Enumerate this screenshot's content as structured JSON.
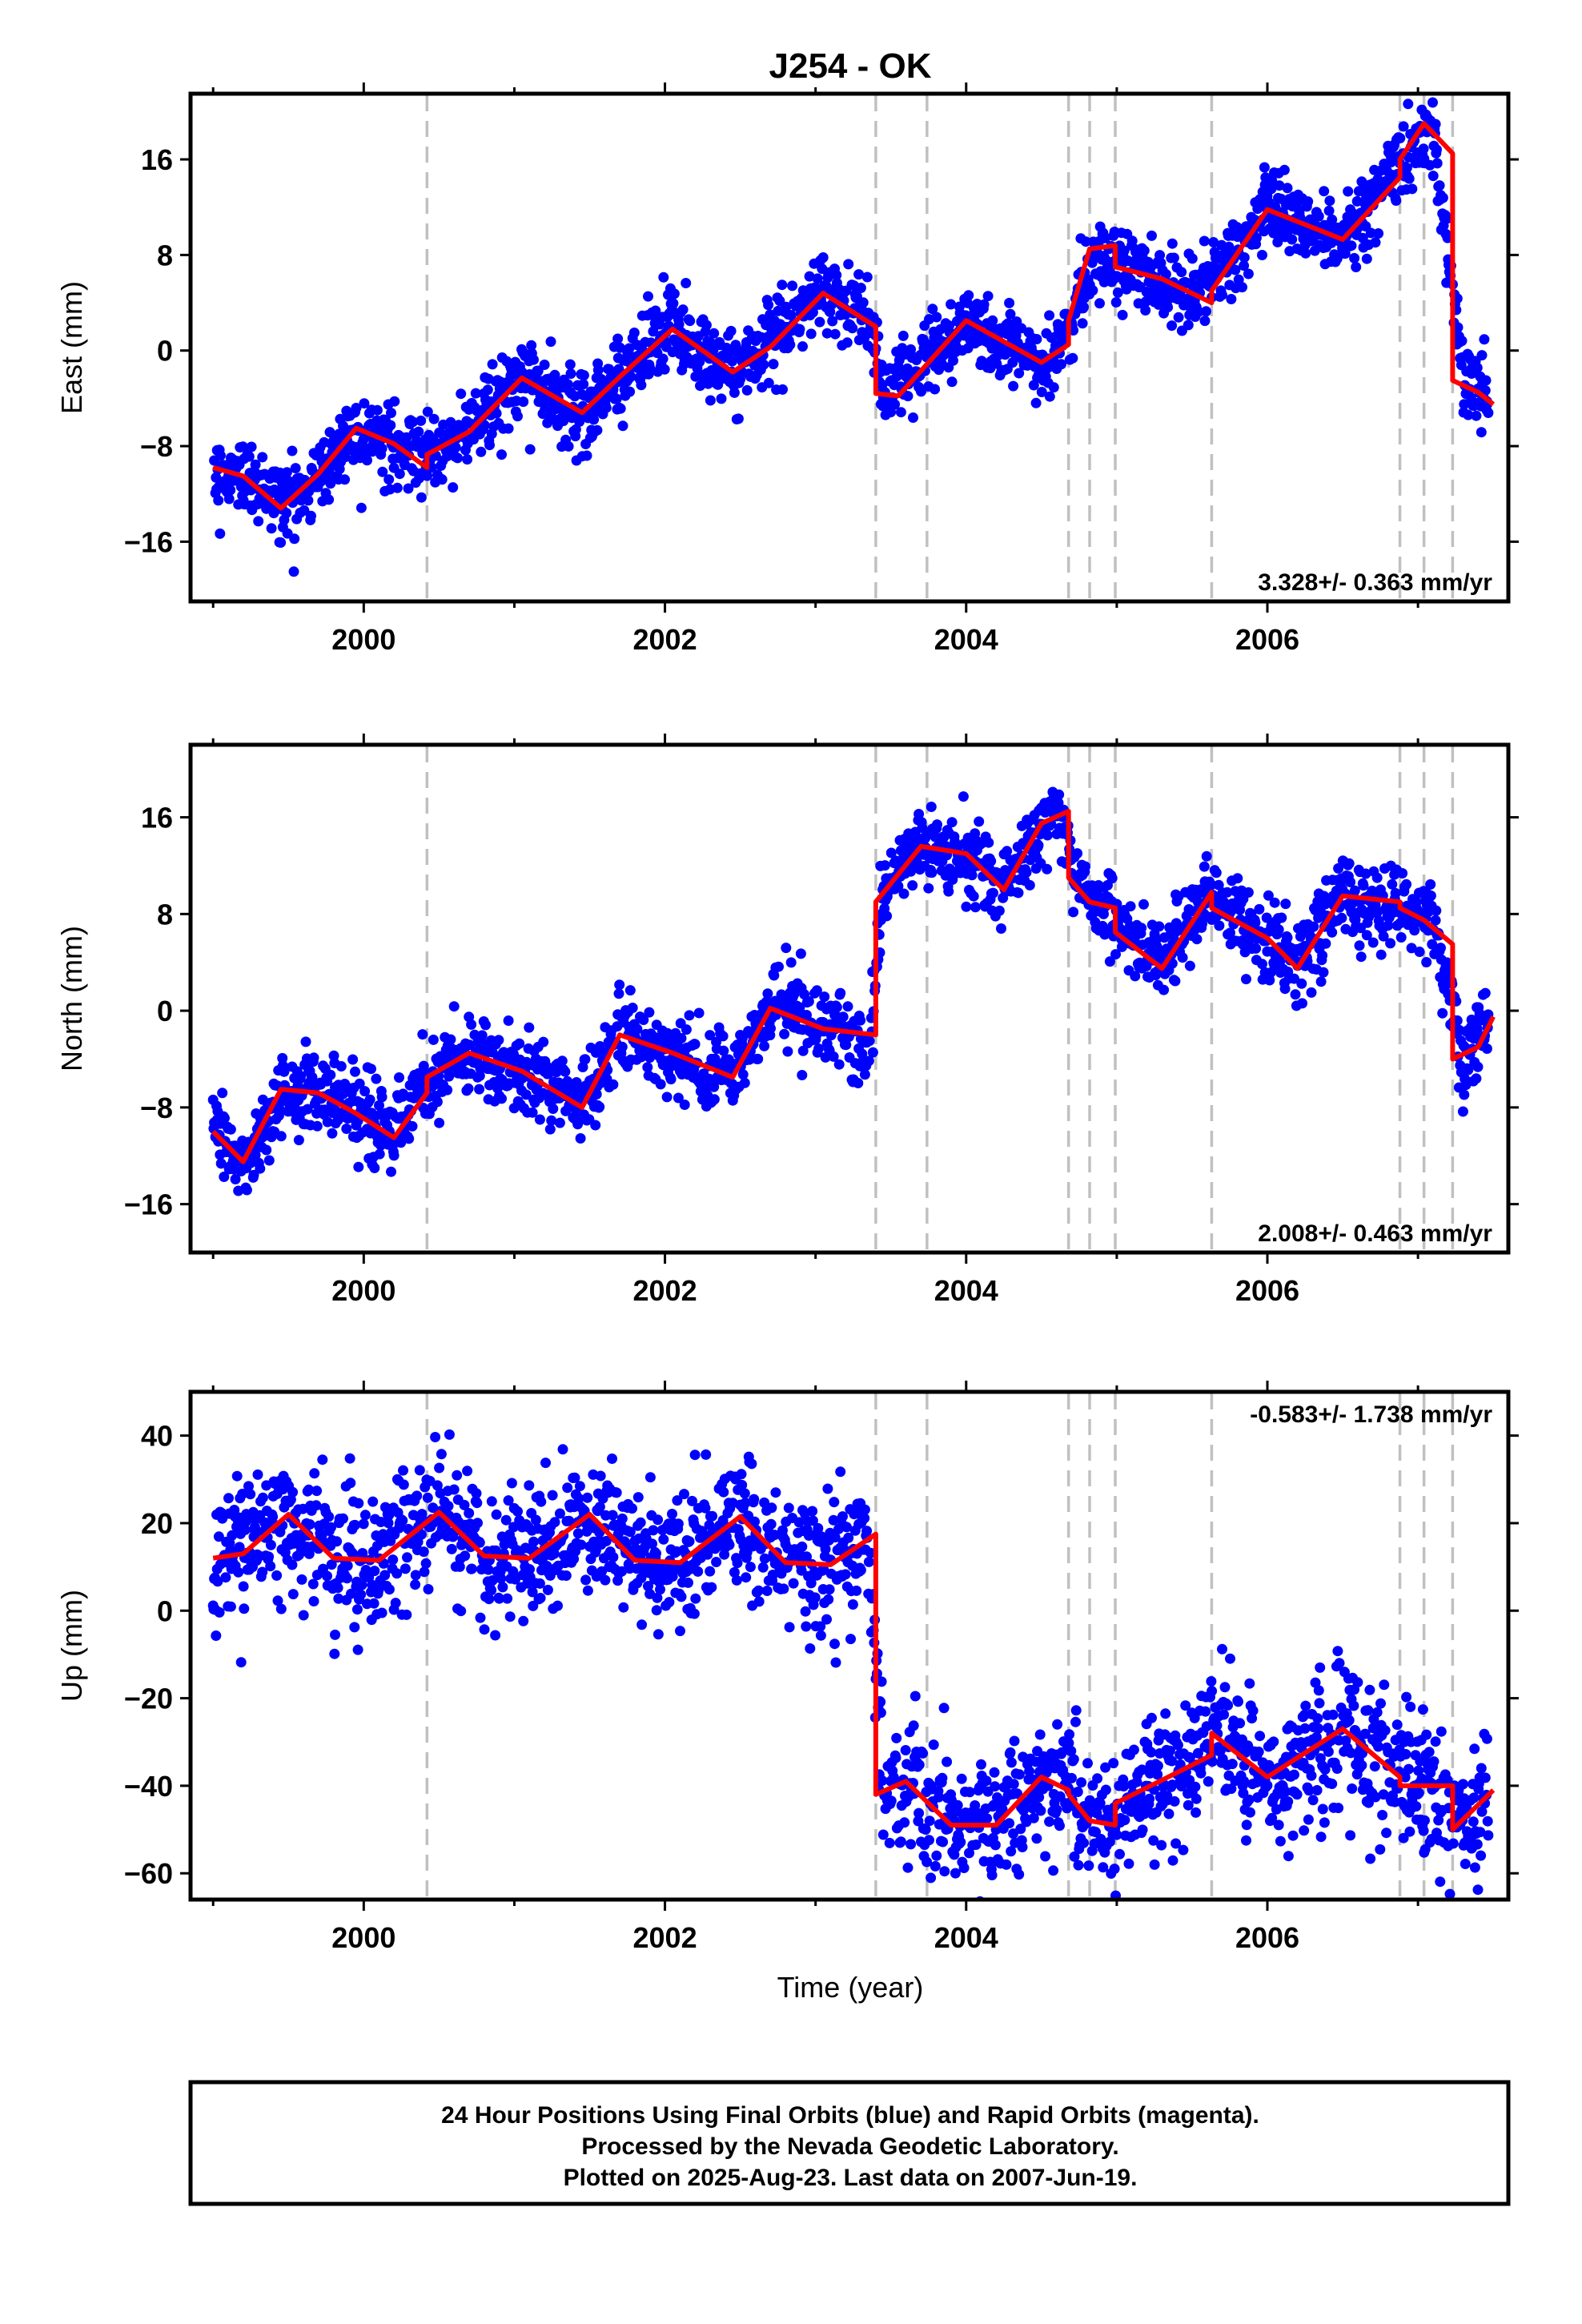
{
  "chart_data": {
    "type": "scatter",
    "title": "J254 - OK",
    "xlabel": "Time (year)",
    "xlim": [
      1998.85,
      2007.6
    ],
    "xticks": [
      2000,
      2002,
      2004,
      2006
    ],
    "breaks": [
      2000.42,
      2003.4,
      2003.74,
      2004.68,
      2004.82,
      2004.99,
      2005.63,
      2006.88,
      2007.04,
      2007.23
    ],
    "colors": {
      "observations": "#0000ff",
      "model": "#ff0000",
      "breaks": "#c0c0c0"
    },
    "panels": [
      {
        "name": "east",
        "ylabel": "East (mm)",
        "ylim": [
          -21,
          21.5
        ],
        "yticks": [
          -16,
          -8,
          0,
          8,
          16
        ],
        "rate": "3.328+/- 0.363 mm/yr",
        "series": [
          {
            "name": "model",
            "x": [
              1999.0,
              1999.2,
              1999.45,
              1999.7,
              1999.95,
              2000.2,
              2000.42,
              2000.42,
              2000.7,
              2001.05,
              2001.45,
              2001.7,
              2002.05,
              2002.45,
              2002.7,
              2003.05,
              2003.4,
              2003.4,
              2003.55,
              2004.0,
              2004.5,
              2004.68,
              2004.68,
              2004.82,
              2004.99,
              2004.99,
              2005.3,
              2005.63,
              2005.63,
              2006.0,
              2006.5,
              2006.88,
              2006.88,
              2007.04,
              2007.23,
              2007.23,
              2007.4,
              2007.5
            ],
            "y": [
              -9.8,
              -10.5,
              -13.2,
              -10.3,
              -6.5,
              -7.8,
              -9.8,
              -8.7,
              -6.8,
              -2.3,
              -5.2,
              -2.2,
              1.8,
              -1.8,
              0.3,
              4.8,
              2.0,
              -3.6,
              -3.8,
              2.5,
              -1.0,
              0.5,
              2.5,
              8.5,
              8.8,
              7.0,
              6.0,
              4.0,
              5.0,
              11.8,
              9.3,
              14.5,
              16.0,
              19.0,
              16.5,
              -2.5,
              -3.5,
              -4.5
            ]
          },
          {
            "name": "observations",
            "x": [
              1999.0,
              1999.2,
              1999.45,
              1999.7,
              1999.95,
              2000.2,
              2000.42,
              2000.7,
              2001.05,
              2001.45,
              2001.7,
              2002.05,
              2002.45,
              2002.7,
              2003.05,
              2003.35,
              2003.45,
              2004.0,
              2004.5,
              2004.7,
              2004.85,
              2005.1,
              2005.5,
              2005.7,
              2006.0,
              2006.5,
              2006.9,
              2007.1,
              2007.3,
              2007.5
            ],
            "y": [
              -10.5,
              -10.2,
              -12.8,
              -10.6,
              -6.2,
              -8.1,
              -8.9,
              -6.5,
              -2.0,
              -5.5,
              -2.0,
              2.0,
              -2.0,
              0.5,
              5.0,
              3.0,
              -3.5,
              2.3,
              -1.2,
              2.0,
              8.0,
              7.0,
              4.5,
              6.5,
              12.0,
              9.0,
              16.0,
              18.5,
              -2.2,
              -4.3
            ]
          }
        ]
      },
      {
        "name": "north",
        "ylabel": "North (mm)",
        "ylim": [
          -20,
          22
        ],
        "yticks": [
          -16,
          -8,
          0,
          8,
          16
        ],
        "rate": "2.008+/- 0.463 mm/yr",
        "series": [
          {
            "name": "model",
            "x": [
              1999.0,
              1999.2,
              1999.45,
              1999.7,
              1999.95,
              2000.2,
              2000.42,
              2000.42,
              2000.7,
              2001.05,
              2001.45,
              2001.7,
              2002.05,
              2002.45,
              2002.7,
              2003.05,
              2003.4,
              2003.4,
              2003.7,
              2004.0,
              2004.25,
              2004.5,
              2004.68,
              2004.68,
              2004.82,
              2004.99,
              2004.99,
              2005.3,
              2005.63,
              2005.63,
              2006.0,
              2006.2,
              2006.5,
              2006.88,
              2006.88,
              2007.04,
              2007.23,
              2007.23,
              2007.4,
              2007.5
            ],
            "y": [
              -10.0,
              -12.5,
              -6.5,
              -6.8,
              -8.5,
              -10.5,
              -6.8,
              -5.5,
              -3.5,
              -5.0,
              -8.0,
              -2.0,
              -3.5,
              -5.5,
              0.2,
              -1.5,
              -2.0,
              9.0,
              13.6,
              13.0,
              10.0,
              15.5,
              16.5,
              11.0,
              9.0,
              8.5,
              6.5,
              3.5,
              9.8,
              8.5,
              6.0,
              3.5,
              9.5,
              9.0,
              8.5,
              7.5,
              5.5,
              -4.0,
              -3.0,
              -0.5
            ]
          },
          {
            "name": "observations",
            "x": [
              1999.0,
              1999.2,
              1999.45,
              1999.7,
              1999.95,
              2000.2,
              2000.42,
              2000.7,
              2001.05,
              2001.45,
              2001.7,
              2002.05,
              2002.45,
              2002.7,
              2003.05,
              2003.35,
              2003.45,
              2003.7,
              2004.0,
              2004.25,
              2004.6,
              2004.75,
              2004.9,
              2005.1,
              2005.3,
              2005.6,
              2006.0,
              2006.2,
              2006.5,
              2006.9,
              2007.1,
              2007.3,
              2007.5
            ],
            "y": [
              -9.6,
              -13.0,
              -7.0,
              -6.5,
              -8.0,
              -10.2,
              -6.0,
              -3.2,
              -5.3,
              -7.6,
              -1.7,
              -3.8,
              -5.2,
              0.5,
              -1.2,
              -3.0,
              10.0,
              13.8,
              12.6,
              10.3,
              17.0,
              10.5,
              8.7,
              6.0,
              4.0,
              9.5,
              5.8,
              3.8,
              9.7,
              8.3,
              7.0,
              -4.2,
              -0.7
            ]
          }
        ]
      },
      {
        "name": "up",
        "ylabel": "Up (mm)",
        "ylim": [
          -66,
          50
        ],
        "yticks": [
          -60,
          -40,
          -20,
          0,
          20,
          40
        ],
        "rate": "-0.583+/- 1.738 mm/yr",
        "series": [
          {
            "name": "model",
            "x": [
              1999.0,
              1999.2,
              1999.5,
              1999.8,
              2000.1,
              2000.5,
              2000.8,
              2001.1,
              2001.5,
              2001.8,
              2002.1,
              2002.5,
              2002.8,
              2003.1,
              2003.4,
              2003.4,
              2003.6,
              2003.9,
              2004.2,
              2004.5,
              2004.68,
              2004.68,
              2004.82,
              2004.99,
              2004.99,
              2005.4,
              2005.63,
              2005.63,
              2006.0,
              2006.5,
              2006.88,
              2006.88,
              2007.04,
              2007.23,
              2007.23,
              2007.5
            ],
            "y": [
              12.0,
              13.0,
              22.0,
              12.0,
              11.5,
              22.5,
              12.5,
              12.0,
              22.0,
              11.5,
              11.0,
              21.5,
              11.0,
              10.5,
              17.5,
              -42.0,
              -39.0,
              -49.0,
              -49.0,
              -38.0,
              -41.0,
              -42.0,
              -48.0,
              -49.0,
              -44.0,
              -37.0,
              -33.0,
              -28.0,
              -38.0,
              -27.0,
              -38.0,
              -40.0,
              -40.0,
              -40.0,
              -50.0,
              -41.0
            ]
          },
          {
            "name": "observations",
            "x": [
              1999.0,
              1999.2,
              1999.5,
              1999.8,
              2000.1,
              2000.5,
              2000.8,
              2001.1,
              2001.5,
              2001.8,
              2002.1,
              2002.5,
              2002.8,
              2003.1,
              2003.35,
              2003.45,
              2003.6,
              2003.9,
              2004.2,
              2004.5,
              2004.75,
              2004.9,
              2005.2,
              2005.5,
              2005.7,
              2006.0,
              2006.5,
              2006.9,
              2007.1,
              2007.3,
              2007.5
            ],
            "y": [
              13.0,
              14.0,
              21.0,
              13.0,
              11.0,
              23.0,
              13.0,
              12.5,
              21.0,
              12.0,
              11.5,
              20.5,
              11.5,
              11.0,
              15.0,
              -41.0,
              -40.0,
              -48.0,
              -48.5,
              -39.0,
              -44.0,
              -48.0,
              -40.0,
              -35.0,
              -28.0,
              -38.0,
              -28.0,
              -38.0,
              -40.0,
              -48.0,
              -42.0
            ]
          }
        ]
      }
    ],
    "legend_text": [
      "24 Hour Positions Using Final Orbits (blue) and Rapid Orbits (magenta).",
      "Processed by the Nevada Geodetic Laboratory.",
      "Plotted on 2025-Aug-23. Last data on 2007-Jun-19."
    ]
  }
}
